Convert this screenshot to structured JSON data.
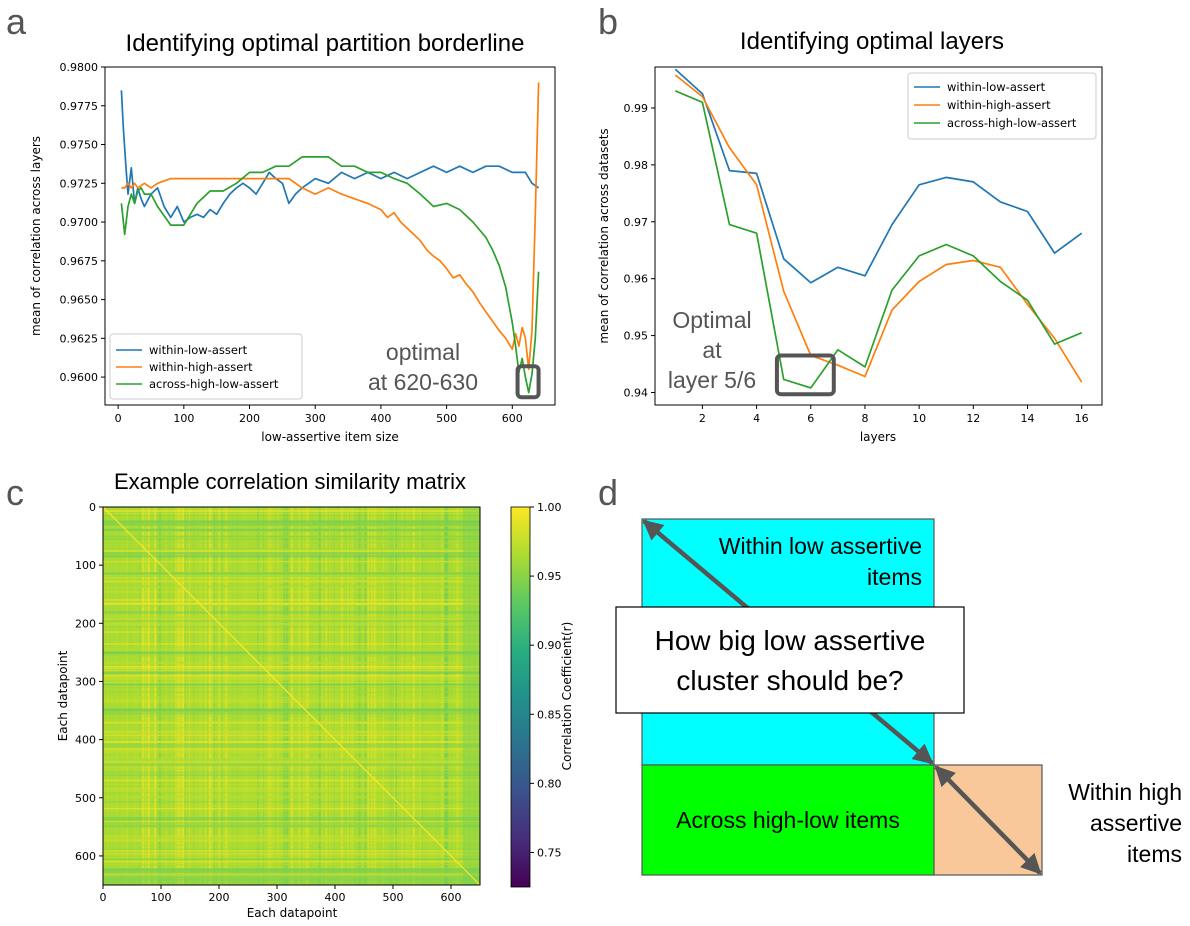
{
  "panel_letters": [
    "a",
    "b",
    "c",
    "d"
  ],
  "colors": {
    "blue": "#1f77b4",
    "orange": "#ff7f0e",
    "green": "#2ca02c",
    "highlight_box": "#555555",
    "cyan": "#00ffff",
    "lime": "#00ff00",
    "peach": "#f8c89a"
  },
  "chart_data": [
    {
      "id": "a",
      "type": "line",
      "title": "Identifying optimal partition borderline",
      "xlabel": "low-assertive item size",
      "ylabel": "mean of correlation across layers",
      "xlim": [
        -20,
        665
      ],
      "ylim": [
        0.9582,
        0.98
      ],
      "xticks": [
        0,
        100,
        200,
        300,
        400,
        500,
        600
      ],
      "yticks": [
        0.96,
        0.9625,
        0.965,
        0.9675,
        0.97,
        0.9725,
        0.975,
        0.9775,
        0.98
      ],
      "ytick_labels": [
        "0.9600",
        "0.9625",
        "0.9650",
        "0.9675",
        "0.9700",
        "0.9725",
        "0.9750",
        "0.9775",
        "0.9800"
      ],
      "legend": [
        "within-low-assert",
        "within-high-assert",
        "across-high-low-assert"
      ],
      "legend_position": "lower-left",
      "series": [
        {
          "name": "within-low-assert",
          "color": "#1f77b4",
          "x": [
            5,
            8,
            12,
            15,
            20,
            25,
            30,
            35,
            40,
            50,
            60,
            70,
            80,
            90,
            100,
            110,
            120,
            130,
            140,
            150,
            160,
            170,
            180,
            190,
            200,
            210,
            220,
            230,
            240,
            250,
            260,
            270,
            280,
            290,
            300,
            320,
            340,
            360,
            380,
            400,
            420,
            440,
            460,
            480,
            500,
            520,
            540,
            560,
            580,
            600,
            620,
            630,
            640
          ],
          "y": [
            0.9785,
            0.976,
            0.9735,
            0.9718,
            0.9735,
            0.9712,
            0.9722,
            0.9715,
            0.971,
            0.9718,
            0.9722,
            0.971,
            0.9703,
            0.971,
            0.97,
            0.9703,
            0.9705,
            0.9703,
            0.9708,
            0.9705,
            0.9712,
            0.9718,
            0.9722,
            0.9725,
            0.9722,
            0.9718,
            0.9725,
            0.9732,
            0.9728,
            0.9725,
            0.9712,
            0.9718,
            0.9722,
            0.9725,
            0.9728,
            0.9725,
            0.9732,
            0.9728,
            0.9732,
            0.9728,
            0.9732,
            0.9728,
            0.9732,
            0.9736,
            0.9732,
            0.9736,
            0.9732,
            0.9736,
            0.9736,
            0.9732,
            0.9732,
            0.9725,
            0.9722
          ]
        },
        {
          "name": "within-high-assert",
          "color": "#ff7f0e",
          "x": [
            5,
            10,
            15,
            20,
            25,
            30,
            40,
            50,
            60,
            80,
            100,
            120,
            140,
            160,
            180,
            200,
            220,
            240,
            260,
            280,
            300,
            320,
            340,
            360,
            380,
            400,
            410,
            420,
            430,
            440,
            450,
            460,
            470,
            480,
            490,
            500,
            510,
            520,
            530,
            540,
            550,
            560,
            570,
            580,
            590,
            600,
            605,
            610,
            615,
            620,
            625,
            630,
            635,
            640
          ],
          "y": [
            0.9722,
            0.9722,
            0.9725,
            0.9722,
            0.9725,
            0.9722,
            0.9725,
            0.9722,
            0.9725,
            0.9728,
            0.9728,
            0.9728,
            0.9728,
            0.9728,
            0.9728,
            0.9728,
            0.9728,
            0.9728,
            0.9728,
            0.9722,
            0.9718,
            0.9722,
            0.9718,
            0.9715,
            0.9712,
            0.9708,
            0.9703,
            0.9706,
            0.97,
            0.9696,
            0.9692,
            0.9688,
            0.9682,
            0.9678,
            0.9675,
            0.967,
            0.9664,
            0.9666,
            0.966,
            0.9655,
            0.9648,
            0.9642,
            0.9636,
            0.963,
            0.9625,
            0.9618,
            0.9628,
            0.962,
            0.9632,
            0.9625,
            0.9605,
            0.963,
            0.9705,
            0.979
          ]
        },
        {
          "name": "across-high-low-assert",
          "color": "#2ca02c",
          "x": [
            5,
            10,
            15,
            20,
            25,
            30,
            35,
            40,
            50,
            60,
            80,
            100,
            120,
            140,
            160,
            180,
            200,
            220,
            240,
            260,
            280,
            300,
            320,
            340,
            360,
            380,
            400,
            420,
            440,
            460,
            480,
            500,
            520,
            540,
            560,
            570,
            580,
            590,
            600,
            605,
            610,
            615,
            620,
            625,
            630,
            635,
            640
          ],
          "y": [
            0.9712,
            0.9692,
            0.971,
            0.9718,
            0.9712,
            0.972,
            0.9722,
            0.9718,
            0.9718,
            0.971,
            0.9698,
            0.9698,
            0.9712,
            0.972,
            0.972,
            0.9725,
            0.9732,
            0.9732,
            0.9736,
            0.9736,
            0.9742,
            0.9742,
            0.9742,
            0.9736,
            0.9736,
            0.9732,
            0.9732,
            0.9728,
            0.9725,
            0.9718,
            0.971,
            0.9712,
            0.9708,
            0.97,
            0.969,
            0.9682,
            0.9672,
            0.9658,
            0.9635,
            0.962,
            0.9603,
            0.9612,
            0.96,
            0.959,
            0.9602,
            0.9625,
            0.9668
          ]
        }
      ],
      "annotation": {
        "line1": "optimal",
        "line2": "at 620-630",
        "box_x": [
          608,
          640
        ],
        "box_y": [
          0.9587,
          0.9607
        ]
      }
    },
    {
      "id": "b",
      "type": "line",
      "title": "Identifying optimal layers",
      "xlabel": "layers",
      "ylabel": "mean of correlation across datasets",
      "xlim": [
        0.25,
        16.75
      ],
      "ylim": [
        0.9378,
        0.9972
      ],
      "xticks": [
        2,
        4,
        6,
        8,
        10,
        12,
        14,
        16
      ],
      "yticks": [
        0.94,
        0.95,
        0.96,
        0.97,
        0.98,
        0.99
      ],
      "ytick_labels": [
        "0.94",
        "0.95",
        "0.96",
        "0.97",
        "0.98",
        "0.99"
      ],
      "legend": [
        "within-low-assert",
        "within-high-assert",
        "across-high-low-assert"
      ],
      "legend_position": "upper-right",
      "series": [
        {
          "name": "within-low-assert",
          "color": "#1f77b4",
          "x": [
            1,
            2,
            3,
            4,
            5,
            6,
            7,
            8,
            9,
            10,
            11,
            12,
            13,
            14,
            15,
            16
          ],
          "y": [
            0.9968,
            0.9925,
            0.979,
            0.9785,
            0.9635,
            0.9593,
            0.962,
            0.9605,
            0.9695,
            0.9765,
            0.9778,
            0.977,
            0.9735,
            0.9718,
            0.9645,
            0.968
          ]
        },
        {
          "name": "within-high-assert",
          "color": "#ff7f0e",
          "x": [
            1,
            2,
            3,
            4,
            5,
            6,
            7,
            8,
            9,
            10,
            11,
            12,
            13,
            14,
            15,
            16
          ],
          "y": [
            0.9958,
            0.992,
            0.983,
            0.9765,
            0.9578,
            0.9465,
            0.9448,
            0.9428,
            0.9545,
            0.9595,
            0.9625,
            0.9632,
            0.962,
            0.9555,
            0.9495,
            0.9418
          ]
        },
        {
          "name": "across-high-low-assert",
          "color": "#2ca02c",
          "x": [
            1,
            2,
            3,
            4,
            5,
            6,
            7,
            8,
            9,
            10,
            11,
            12,
            13,
            14,
            15,
            16
          ],
          "y": [
            0.993,
            0.991,
            0.9695,
            0.968,
            0.9423,
            0.9408,
            0.9475,
            0.9445,
            0.958,
            0.964,
            0.966,
            0.964,
            0.9595,
            0.9562,
            0.9485,
            0.9505
          ]
        }
      ],
      "annotation": {
        "line1": "Optimal",
        "line2": "at",
        "line3": "layer 5/6",
        "box_x": [
          4.75,
          6.85
        ],
        "box_y": [
          0.9397,
          0.9465
        ]
      }
    },
    {
      "id": "c",
      "type": "heatmap",
      "title": "Example correlation similarity matrix",
      "xlabel": "Each datapoint",
      "ylabel": "Each datapoint",
      "n": 650,
      "xticks": [
        0,
        100,
        200,
        300,
        400,
        500,
        600
      ],
      "yticks": [
        0,
        100,
        200,
        300,
        400,
        500,
        600
      ],
      "colorbar_label": "Correlation Coefficient(r)",
      "colorbar_range": [
        0.725,
        1.0
      ],
      "colorbar_ticks": [
        0.75,
        0.8,
        0.85,
        0.9,
        0.95,
        1.0
      ],
      "colorbar_tick_labels": [
        "0.75",
        "0.80",
        "0.85",
        "0.90",
        "0.95",
        "1.00"
      ]
    }
  ],
  "diagram": {
    "low_label_line1": "Within low assertive",
    "low_label_line2": "items",
    "question_line1": "How big low assertive",
    "question_line2": "cluster should be?",
    "across_label": "Across high-low items",
    "high_label_line1": "Within high",
    "high_label_line2": "assertive",
    "high_label_line3": "items"
  }
}
